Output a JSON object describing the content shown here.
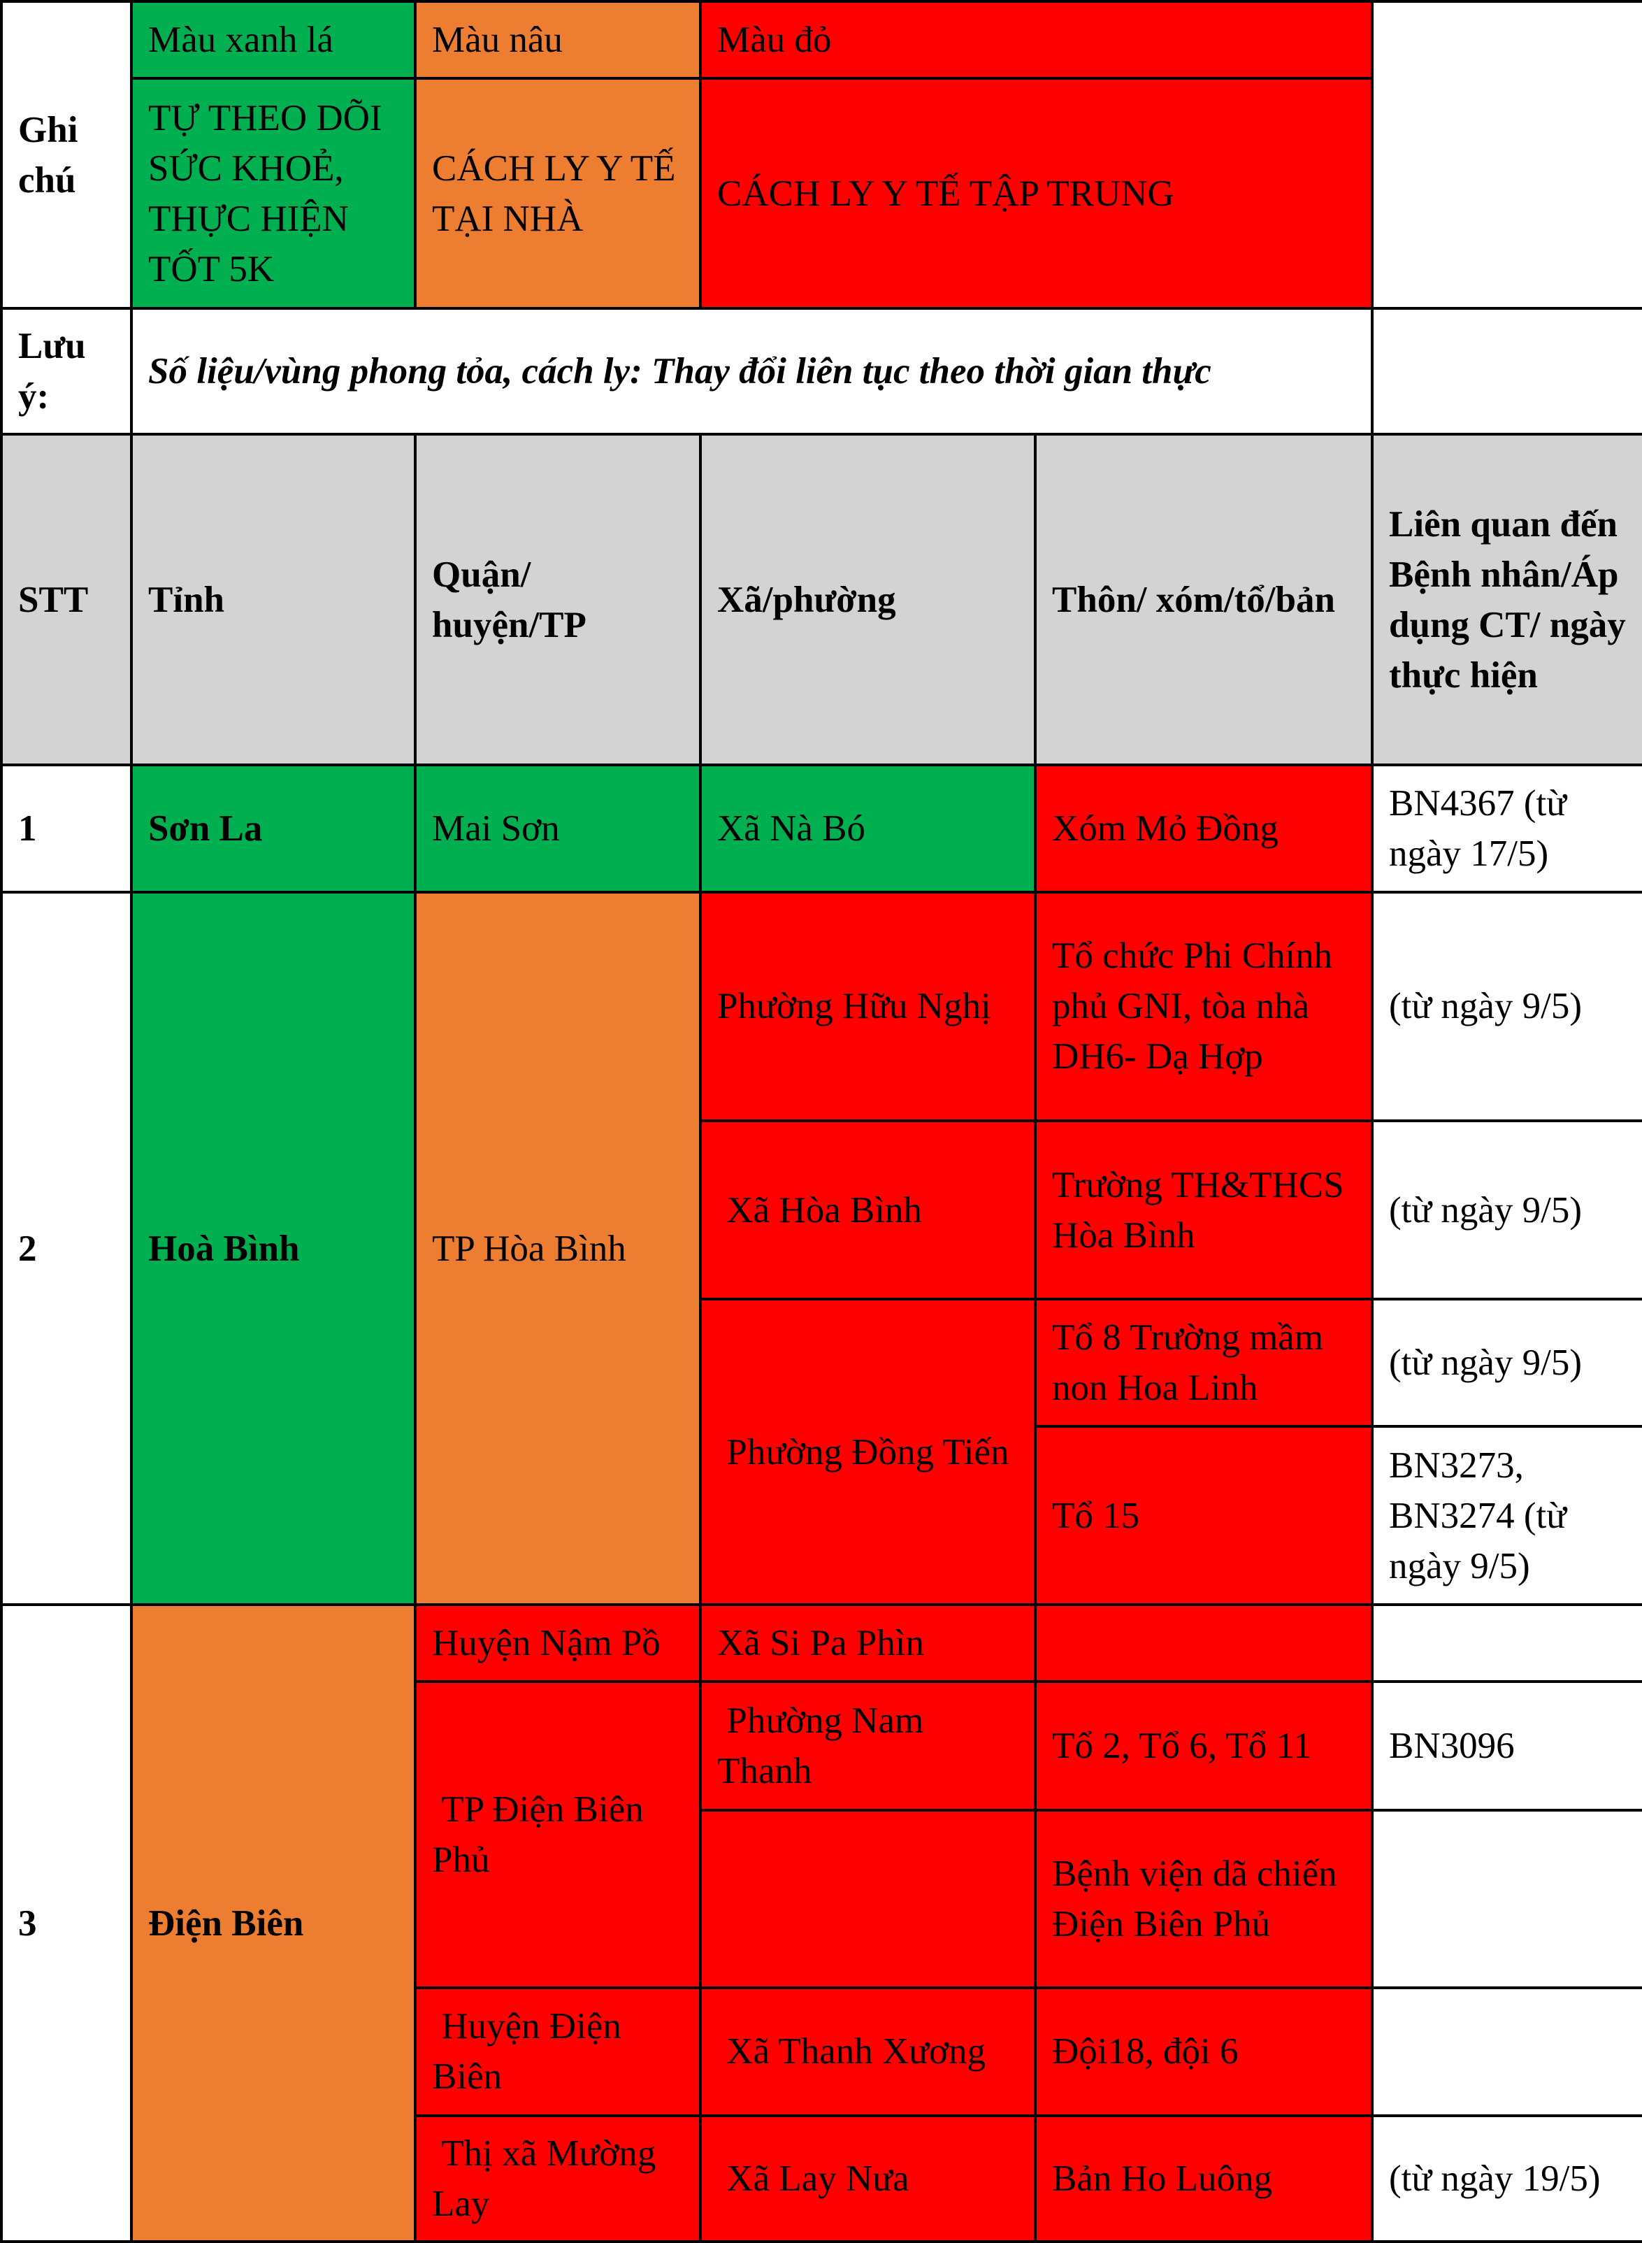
{
  "colors": {
    "green": "#00b050",
    "orange": "#ed7d31",
    "red": "#ff0000",
    "header_gray": "#d3d3d3"
  },
  "legend": {
    "label": "Ghi chú",
    "green_name": "Màu xanh lá",
    "orange_name": "Màu nâu",
    "red_name": "Màu đỏ",
    "green_desc": "TỰ THEO DÕI SỨC KHOẺ, THỰC HIỆN TỐT 5K",
    "orange_desc": "CÁCH LY Y TẾ TẠI NHÀ",
    "red_desc": "CÁCH LY Y TẾ TẬP TRUNG"
  },
  "note": {
    "label": "Lưu ý:",
    "text": "Số liệu/vùng phong tỏa, cách ly: Thay đổi liên tục theo thời gian thực"
  },
  "headers": {
    "stt": "STT",
    "province": "Tỉnh",
    "district": "Quận/ huyện/TP",
    "commune": "Xã/phường",
    "hamlet": "Thôn/ xóm/tổ/bản",
    "related": "Liên quan đến Bệnh nhân/Áp dụng CT/ ngày thực hiện"
  },
  "groups": [
    {
      "stt": "1",
      "province": "Sơn La",
      "district": "Mai Sơn",
      "commune": "Xã Nà Bó",
      "hamlet": "Xóm Mỏ Đồng",
      "related": "BN4367 (từ ngày 17/5)"
    },
    {
      "stt": "2",
      "province": "Hoà Bình",
      "district": "TP Hòa Bình",
      "rows": [
        {
          "commune": "Phường Hữu Nghị",
          "hamlet": "Tổ chức Phi Chính phủ GNI, tòa nhà DH6- Dạ Hợp",
          "related": "(từ ngày 9/5)"
        },
        {
          "commune": " Xã Hòa Bình",
          "hamlet": "Trường TH&THCS Hòa Bình",
          "related": "(từ ngày 9/5)"
        },
        {
          "commune": " Phường Đồng Tiến",
          "hamlet": "Tổ 8 Trường mầm non Hoa Linh",
          "related": "(từ ngày 9/5)"
        },
        {
          "hamlet": "Tổ 15",
          "related": "BN3273, BN3274 (từ ngày 9/5)"
        }
      ]
    },
    {
      "stt": "3",
      "province": "Điện Biên",
      "rows": [
        {
          "district": "Huyện Nậm Pồ",
          "commune": "Xã Si Pa Phìn",
          "hamlet": "",
          "related": ""
        },
        {
          "district": " TP Điện Biên  Phủ",
          "commune": " Phường Nam Thanh",
          "hamlet": "Tổ 2, Tổ 6, Tổ 11",
          "related": "BN3096"
        },
        {
          "commune": "",
          "hamlet": "Bệnh viện dã chiến Điện Biên Phủ",
          "related": ""
        },
        {
          "district": " Huyện Điện Biên",
          "commune": " Xã Thanh Xương",
          "hamlet": "Đội18, đội 6",
          "related": ""
        },
        {
          "district": " Thị xã Mường Lay",
          "commune": " Xã Lay Nưa",
          "hamlet": "Bản Ho Luông",
          "related": "(từ ngày 19/5)"
        }
      ]
    }
  ]
}
